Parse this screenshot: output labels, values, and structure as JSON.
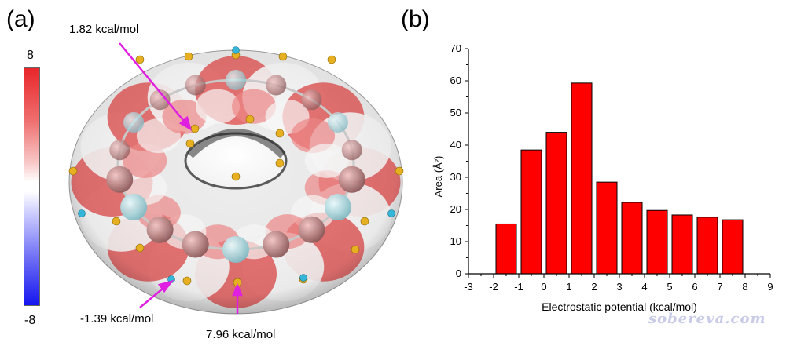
{
  "panel_a": {
    "label": "(a)",
    "colorbar": {
      "max_label": "8",
      "min_label": "-8",
      "top_color": "#e8262a",
      "mid_color": "#ffffff",
      "bottom_color": "#1515f0"
    },
    "annotations": [
      {
        "text": "1.82 kcal/mol"
      },
      {
        "text": "-1.39 kcal/mol"
      },
      {
        "text": "7.96 kcal/mol"
      }
    ],
    "annotation_color": "#e020e0"
  },
  "panel_b": {
    "label": "(b)",
    "bar_color": "#ff0000"
  },
  "chart_data": {
    "type": "bar",
    "title": "",
    "xlabel": "Electrostatic potential (kcal/mol)",
    "ylabel": "Area (Å²)",
    "xlim": [
      -3,
      9
    ],
    "ylim": [
      0,
      70
    ],
    "xticks": [
      -3,
      -2,
      -1,
      0,
      1,
      2,
      3,
      4,
      5,
      6,
      7,
      8,
      9
    ],
    "yticks": [
      0,
      10,
      20,
      30,
      40,
      50,
      60,
      70
    ],
    "bin_width": 1,
    "bin_centers": [
      -1.5,
      -0.5,
      0.5,
      1.5,
      2.5,
      3.5,
      4.5,
      5.5,
      6.5,
      7.5
    ],
    "values": [
      15.5,
      38.5,
      44,
      59.3,
      28.5,
      22.2,
      19.7,
      18.3,
      17.6,
      16.8
    ],
    "grid": false
  },
  "watermark": "sobereva.com"
}
